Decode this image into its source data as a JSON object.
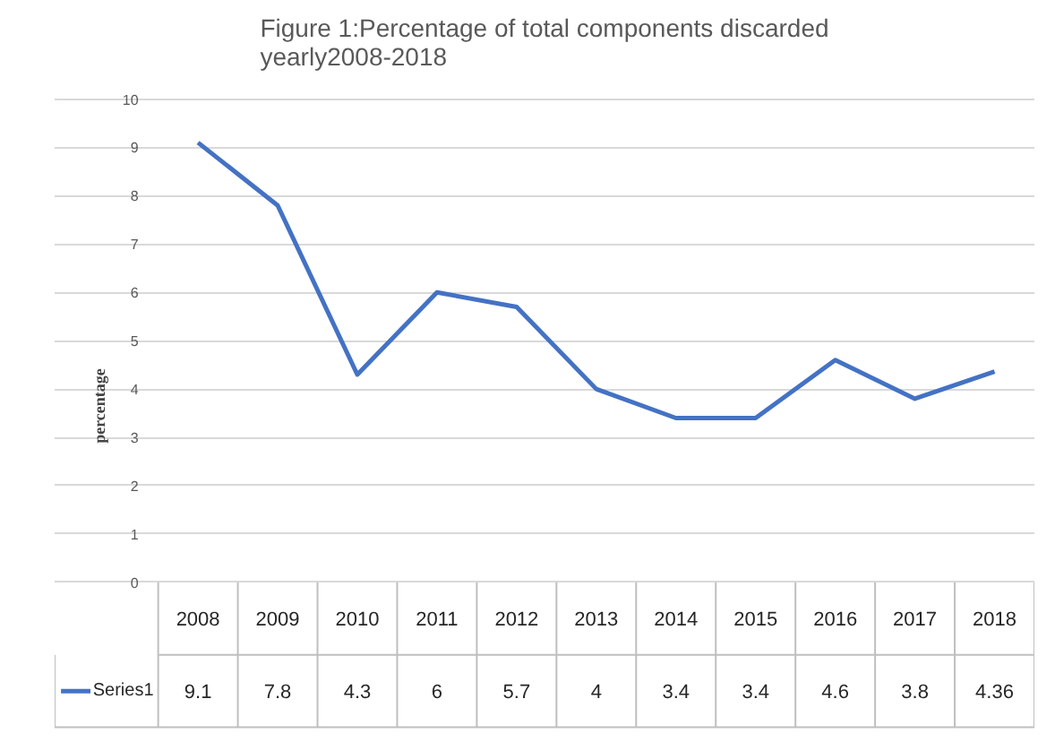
{
  "chart_data": {
    "type": "line",
    "title": "Figure 1:Percentage of total components discarded\nyearly2008-2018",
    "ylabel": "percentage",
    "categories": [
      "2008",
      "2009",
      "2010",
      "2011",
      "2012",
      "2013",
      "2014",
      "2015",
      "2016",
      "2017",
      "2018"
    ],
    "series": [
      {
        "name": "Series1",
        "color": "#4472c4",
        "values": [
          9.1,
          7.8,
          4.3,
          6,
          5.7,
          4,
          3.4,
          3.4,
          4.6,
          3.8,
          4.36
        ]
      }
    ],
    "ylim": [
      0,
      10
    ],
    "yticks": [
      0,
      1,
      2,
      3,
      4,
      5,
      6,
      7,
      8,
      9,
      10
    ],
    "grid": "y",
    "data_labels": true,
    "legend": "bottom",
    "marker": "none",
    "line_style": "solid"
  }
}
